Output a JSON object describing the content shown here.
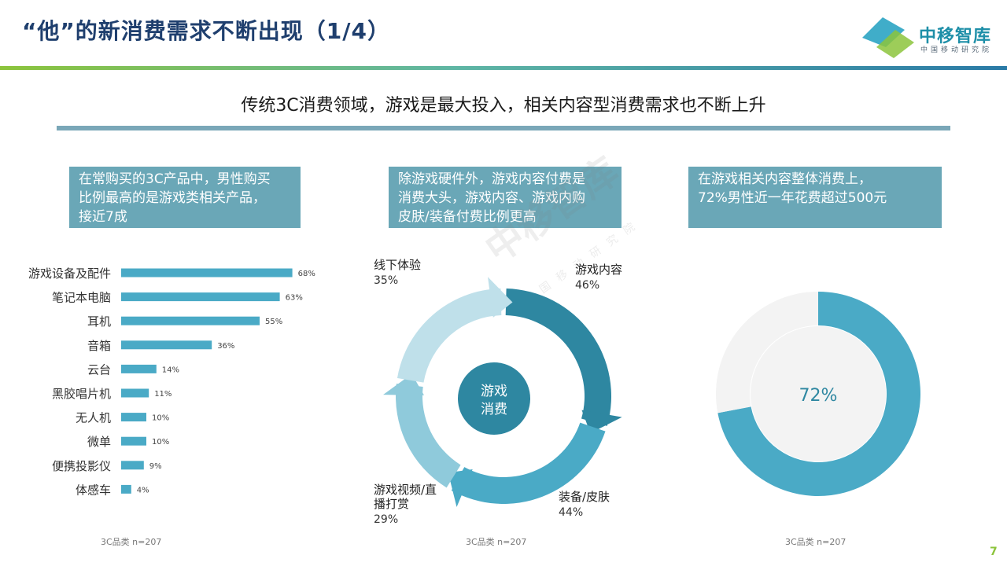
{
  "header": {
    "title": "“他”的新消费需求不断出现（1/4）",
    "logo_text": "中移智库",
    "logo_sub": "中国移动研究院"
  },
  "subtitle": "传统3C消费领域，游戏是最大投入，相关内容型消费需求也不断上升",
  "callouts": [
    {
      "lines": [
        "在常购买的3C产品中，男性购买",
        "比例最高的是游戏类相关产品，",
        "接近7成"
      ]
    },
    {
      "lines": [
        "除游戏硬件外，游戏内容付费是",
        "消费大头，游戏内容、游戏内购",
        "皮肤/装备付费比例更高"
      ]
    },
    {
      "lines": [
        "在游戏相关内容整体消费上，",
        "72%男性近一年花费超过500元"
      ]
    }
  ],
  "notes": [
    "3C品类 n=207",
    "3C品类 n=207",
    "3C品类 n=207"
  ],
  "page_number": "7",
  "colors": {
    "title": "#1f3f6e",
    "bar": "#4aaac6",
    "callout_bg": "#6aa7b7",
    "ring_content": "#2e87a1",
    "ring_equip": "#4aaac6",
    "ring_video": "#8fcadb",
    "ring_offline": "#bfe0ea",
    "center_circle": "#2e87a1",
    "donut_fill": "#4aaac6",
    "donut_rest": "#f3f3f3",
    "page_number": "#8cc43c"
  },
  "chart_data": [
    {
      "type": "bar",
      "orientation": "horizontal",
      "categories": [
        "游戏设备及配件",
        "笔记本电脑",
        "耳机",
        "音箱",
        "云台",
        "黑胶唱片机",
        "无人机",
        "微单",
        "便携投影仪",
        "体感车"
      ],
      "values": [
        68,
        63,
        55,
        36,
        14,
        11,
        10,
        10,
        9,
        4
      ],
      "value_labels": [
        "68%",
        "63%",
        "55%",
        "36%",
        "14%",
        "11%",
        "10%",
        "10%",
        "9%",
        "4%"
      ],
      "unit": "%",
      "xlim": [
        0,
        100
      ]
    },
    {
      "type": "pie",
      "center_label": [
        "游戏",
        "消费"
      ],
      "categories": [
        "游戏内容",
        "装备/皮肤",
        "游戏视频/直播打赏",
        "线下体验"
      ],
      "label_lines": [
        [
          "游戏内容"
        ],
        [
          "装备/皮肤"
        ],
        [
          "游戏视频/直",
          "播打赏"
        ],
        [
          "线下体验"
        ]
      ],
      "values": [
        46,
        44,
        29,
        35
      ],
      "value_labels": [
        "46%",
        "44%",
        "29%",
        "35%"
      ]
    },
    {
      "type": "pie",
      "values": [
        72,
        28
      ],
      "center_label": "72%"
    }
  ]
}
